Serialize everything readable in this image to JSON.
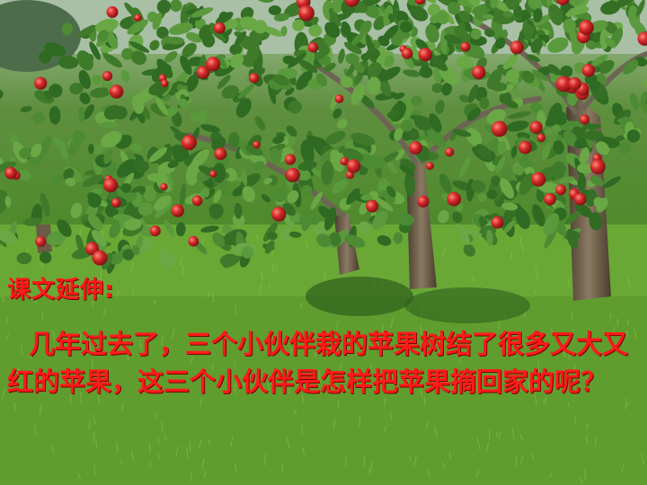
{
  "slide": {
    "heading": "课文延伸:",
    "body": "几年过去了，三个小伙伴栽的苹果树结了很多又大又红的苹果，这三个小伙伴是怎样把苹果摘回家的呢？"
  },
  "photo": {
    "subject": "apple-orchard-photo",
    "colors": {
      "leaf": "#3f7a2a",
      "grass": "#6aa836",
      "trunk": "#6b5a44",
      "apple": "#d42a2a"
    }
  }
}
